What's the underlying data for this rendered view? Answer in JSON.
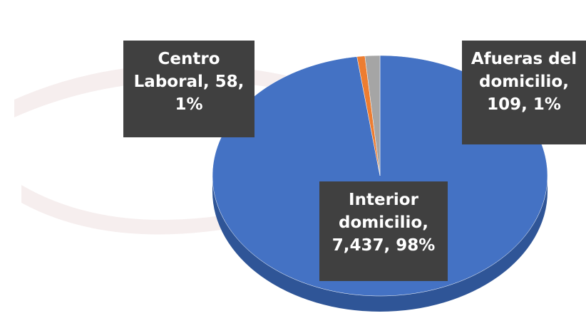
{
  "chart_data": {
    "type": "pie",
    "categories": [
      "Interior domicilio",
      "Centro Laboral",
      "Afueras del domicilio"
    ],
    "values": [
      7437,
      58,
      109
    ],
    "value_labels": [
      "Interior domicilio, 7,437, 98%",
      "Centro Laboral, 58, 1%",
      "Afueras del domicilio, 109, 1%"
    ],
    "colors": [
      "#4472c4",
      "#ed7d31",
      "#a5a5a5"
    ]
  }
}
